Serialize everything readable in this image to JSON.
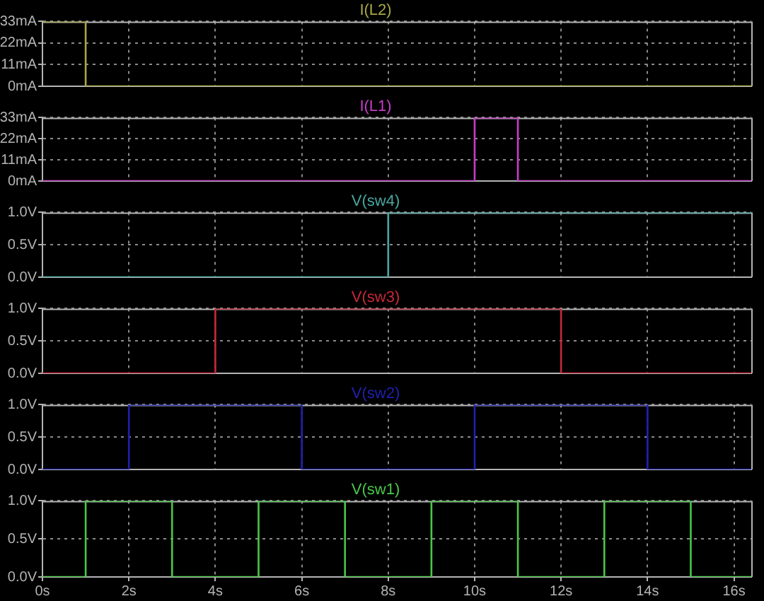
{
  "chart_data": [
    {
      "type": "line",
      "title": "I(L2)",
      "series": [
        {
          "color": "#a8a848",
          "x": [
            0,
            1,
            1,
            16.4
          ],
          "values": [
            33,
            33,
            0,
            0
          ]
        }
      ],
      "xlim": [
        0,
        16.4
      ],
      "xticks": [
        0,
        2,
        4,
        6,
        8,
        10,
        12,
        14,
        16
      ],
      "ylim": [
        0,
        33
      ],
      "yticks": [
        {
          "value": 0,
          "label": "0mA"
        },
        {
          "value": 11,
          "label": "11mA"
        },
        {
          "value": 22,
          "label": "22mA"
        },
        {
          "value": 33,
          "label": "33mA"
        }
      ],
      "grid": true,
      "tick_labels": "y",
      "legend": false
    },
    {
      "type": "line",
      "title": "I(L1)",
      "series": [
        {
          "color": "#c83cc8",
          "x": [
            0,
            10,
            10,
            11,
            11,
            16.4
          ],
          "values": [
            0,
            0,
            33,
            33,
            0,
            0
          ]
        }
      ],
      "xlim": [
        0,
        16.4
      ],
      "xticks": [
        0,
        2,
        4,
        6,
        8,
        10,
        12,
        14,
        16
      ],
      "ylim": [
        0,
        33
      ],
      "yticks": [
        {
          "value": 0,
          "label": "0mA"
        },
        {
          "value": 11,
          "label": "11mA"
        },
        {
          "value": 22,
          "label": "22mA"
        },
        {
          "value": 33,
          "label": "33mA"
        }
      ],
      "grid": true,
      "tick_labels": "y",
      "legend": false
    },
    {
      "type": "line",
      "title": "V(sw4)",
      "series": [
        {
          "color": "#48a8a0",
          "x": [
            0,
            8,
            8,
            16.4
          ],
          "values": [
            0,
            0,
            1,
            1
          ]
        }
      ],
      "xlim": [
        0,
        16.4
      ],
      "xticks": [
        0,
        2,
        4,
        6,
        8,
        10,
        12,
        14,
        16
      ],
      "ylim": [
        0,
        1
      ],
      "yticks": [
        {
          "value": 0,
          "label": "0.0V"
        },
        {
          "value": 0.5,
          "label": "0.5V"
        },
        {
          "value": 1,
          "label": "1.0V"
        }
      ],
      "grid": true,
      "tick_labels": "y",
      "legend": false
    },
    {
      "type": "line",
      "title": "V(sw3)",
      "series": [
        {
          "color": "#c82838",
          "x": [
            0,
            4,
            4,
            12,
            12,
            16.4
          ],
          "values": [
            0,
            0,
            1,
            1,
            0,
            0
          ]
        }
      ],
      "xlim": [
        0,
        16.4
      ],
      "xticks": [
        0,
        2,
        4,
        6,
        8,
        10,
        12,
        14,
        16
      ],
      "ylim": [
        0,
        1
      ],
      "yticks": [
        {
          "value": 0,
          "label": "0.0V"
        },
        {
          "value": 0.5,
          "label": "0.5V"
        },
        {
          "value": 1,
          "label": "1.0V"
        }
      ],
      "grid": true,
      "tick_labels": "y",
      "legend": false
    },
    {
      "type": "line",
      "title": "V(sw2)",
      "series": [
        {
          "color": "#2020b0",
          "x": [
            0,
            2,
            2,
            6,
            6,
            10,
            10,
            14,
            14,
            16.4
          ],
          "values": [
            0,
            0,
            1,
            1,
            0,
            0,
            1,
            1,
            0,
            0
          ]
        }
      ],
      "xlim": [
        0,
        16.4
      ],
      "xticks": [
        0,
        2,
        4,
        6,
        8,
        10,
        12,
        14,
        16
      ],
      "ylim": [
        0,
        1
      ],
      "yticks": [
        {
          "value": 0,
          "label": "0.0V"
        },
        {
          "value": 0.5,
          "label": "0.5V"
        },
        {
          "value": 1,
          "label": "1.0V"
        }
      ],
      "grid": true,
      "tick_labels": "y",
      "legend": false
    },
    {
      "type": "line",
      "title": "V(sw1)",
      "series": [
        {
          "color": "#48c848",
          "x": [
            0,
            1,
            1,
            3,
            3,
            5,
            5,
            7,
            7,
            9,
            9,
            11,
            11,
            13,
            13,
            15,
            15,
            16.4
          ],
          "values": [
            0,
            0,
            1,
            1,
            0,
            0,
            1,
            1,
            0,
            0,
            1,
            1,
            0,
            0,
            1,
            1,
            0,
            0
          ]
        }
      ],
      "xlim": [
        0,
        16.4
      ],
      "xticks": [
        {
          "value": 0,
          "label": "0s"
        },
        {
          "value": 2,
          "label": "2s"
        },
        {
          "value": 4,
          "label": "4s"
        },
        {
          "value": 6,
          "label": "6s"
        },
        {
          "value": 8,
          "label": "8s"
        },
        {
          "value": 10,
          "label": "10s"
        },
        {
          "value": 12,
          "label": "12s"
        },
        {
          "value": 14,
          "label": "14s"
        },
        {
          "value": 16,
          "label": "16s"
        }
      ],
      "ylim": [
        0,
        1
      ],
      "yticks": [
        {
          "value": 0,
          "label": "0.0V"
        },
        {
          "value": 0.5,
          "label": "0.5V"
        },
        {
          "value": 1,
          "label": "1.0V"
        }
      ],
      "grid": true,
      "legend": false
    }
  ]
}
